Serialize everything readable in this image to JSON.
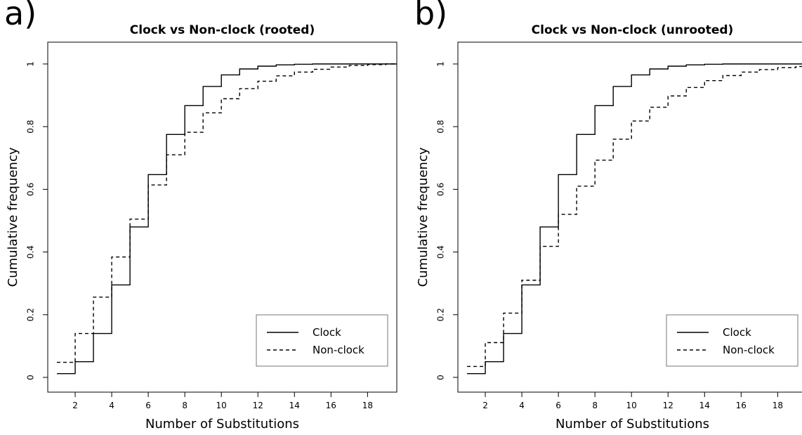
{
  "panels": [
    {
      "letter": "a)",
      "chart_data": {
        "type": "line",
        "title": "Clock vs Non-clock (rooted)",
        "xlabel": "Number of Substitutions",
        "ylabel": "Cumulative frequency",
        "xlim": [
          0.5,
          19.6
        ],
        "ylim": [
          0,
          1
        ],
        "xticks": [
          2,
          4,
          6,
          8,
          10,
          12,
          14,
          16,
          18
        ],
        "yticks": [
          0,
          0.2,
          0.4,
          0.6,
          0.8,
          1
        ],
        "grid": false,
        "legend_position": "bottom-right",
        "series": [
          {
            "name": "Clock",
            "style": "solid",
            "x": [
              1,
              2,
              3,
              4,
              5,
              6,
              7,
              8,
              9,
              10,
              11,
              12,
              13,
              14,
              15,
              16,
              17,
              18,
              19
            ],
            "y": [
              0.012,
              0.05,
              0.14,
              0.295,
              0.48,
              0.647,
              0.775,
              0.867,
              0.928,
              0.965,
              0.984,
              0.993,
              0.997,
              0.999,
              1.0,
              1.0,
              1.0,
              1.0,
              1.0
            ]
          },
          {
            "name": "Non-clock",
            "style": "dashed",
            "x": [
              1,
              2,
              3,
              4,
              5,
              6,
              7,
              8,
              9,
              10,
              11,
              12,
              13,
              14,
              15,
              16,
              17,
              18,
              19
            ],
            "y": [
              0.048,
              0.14,
              0.256,
              0.384,
              0.505,
              0.614,
              0.71,
              0.782,
              0.844,
              0.889,
              0.921,
              0.945,
              0.962,
              0.974,
              0.983,
              0.99,
              0.995,
              0.998,
              1.0
            ]
          }
        ]
      }
    },
    {
      "letter": "b)",
      "chart_data": {
        "type": "line",
        "title": "Clock vs Non-clock (unrooted)",
        "xlabel": "Number of Substitutions",
        "ylabel": "Cumulative frequency",
        "xlim": [
          0.5,
          19.6
        ],
        "ylim": [
          0,
          1
        ],
        "xticks": [
          2,
          4,
          6,
          8,
          10,
          12,
          14,
          16,
          18
        ],
        "yticks": [
          0,
          0.2,
          0.4,
          0.6,
          0.8,
          1
        ],
        "grid": false,
        "legend_position": "bottom-right",
        "series": [
          {
            "name": "Clock",
            "style": "solid",
            "x": [
              1,
              2,
              3,
              4,
              5,
              6,
              7,
              8,
              9,
              10,
              11,
              12,
              13,
              14,
              15,
              16,
              17,
              18,
              19
            ],
            "y": [
              0.012,
              0.05,
              0.14,
              0.295,
              0.48,
              0.647,
              0.775,
              0.867,
              0.928,
              0.965,
              0.984,
              0.993,
              0.997,
              0.999,
              1.0,
              1.0,
              1.0,
              1.0,
              1.0
            ]
          },
          {
            "name": "Non-clock",
            "style": "dashed",
            "x": [
              1,
              2,
              3,
              4,
              5,
              6,
              7,
              8,
              9,
              10,
              11,
              12,
              13,
              14,
              15,
              16,
              17,
              18,
              19
            ],
            "y": [
              0.035,
              0.111,
              0.205,
              0.31,
              0.418,
              0.52,
              0.61,
              0.693,
              0.76,
              0.818,
              0.862,
              0.898,
              0.925,
              0.947,
              0.963,
              0.974,
              0.982,
              0.988,
              0.992
            ]
          }
        ]
      }
    }
  ]
}
